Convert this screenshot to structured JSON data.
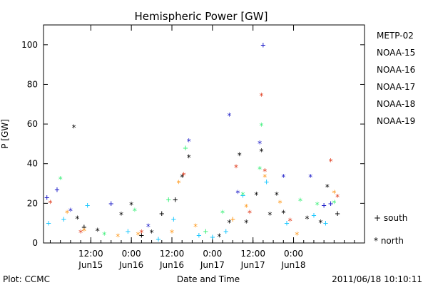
{
  "chart_data": {
    "type": "scatter",
    "title": "Hemispheric Power [GW]",
    "ylabel": "P [GW]",
    "xlabel": "Date and Time",
    "xlim": [
      "2011-06-14 22:00",
      "2011-06-18 21:00"
    ],
    "ylim": [
      0,
      110
    ],
    "yticks": [
      0,
      20,
      40,
      60,
      80,
      100
    ],
    "xticks": [
      {
        "t": "2011-06-15 12:00",
        "label": "12:00",
        "sub": "Jun15"
      },
      {
        "t": "2011-06-16 00:00",
        "label": "0:00",
        "sub": "Jun16"
      },
      {
        "t": "2011-06-16 12:00",
        "label": "12:00",
        "sub": "Jun16"
      },
      {
        "t": "2011-06-17 00:00",
        "label": "0:00",
        "sub": "Jun17"
      },
      {
        "t": "2011-06-17 12:00",
        "label": "12:00",
        "sub": "Jun17"
      },
      {
        "t": "2011-06-18 00:00",
        "label": "0:00",
        "sub": "Jun18"
      }
    ],
    "legend": [
      {
        "name": "METP-02",
        "color": "#000000"
      },
      {
        "name": "NOAA-15",
        "color": "#1c1cc8"
      },
      {
        "name": "NOAA-16",
        "color": "#1ec8ff"
      },
      {
        "name": "NOAA-17",
        "color": "#3cf07a"
      },
      {
        "name": "NOAA-18",
        "color": "#ff9a1e"
      },
      {
        "name": "NOAA-19",
        "color": "#e03c1e"
      }
    ],
    "marker_key": [
      {
        "symbol": "+",
        "label": "south"
      },
      {
        "symbol": "*",
        "label": "north"
      }
    ],
    "series": [
      {
        "name": "METP-02",
        "points": [
          {
            "x": "2011-06-15 07:00",
            "y": 58,
            "m": "*"
          },
          {
            "x": "2011-06-15 08:00",
            "y": 12,
            "m": "*"
          },
          {
            "x": "2011-06-15 10:00",
            "y": 8,
            "m": "+"
          },
          {
            "x": "2011-06-15 14:00",
            "y": 6,
            "m": "*"
          },
          {
            "x": "2011-06-15 21:00",
            "y": 14,
            "m": "*"
          },
          {
            "x": "2011-06-16 00:00",
            "y": 19,
            "m": "*"
          },
          {
            "x": "2011-06-16 03:00",
            "y": 4,
            "m": "+"
          },
          {
            "x": "2011-06-16 06:00",
            "y": 5,
            "m": "*"
          },
          {
            "x": "2011-06-16 09:00",
            "y": 15,
            "m": "+"
          },
          {
            "x": "2011-06-16 13:00",
            "y": 22,
            "m": "+"
          },
          {
            "x": "2011-06-16 15:00",
            "y": 33,
            "m": "*"
          },
          {
            "x": "2011-06-16 17:00",
            "y": 43,
            "m": "*"
          },
          {
            "x": "2011-06-17 02:00",
            "y": 3,
            "m": "*"
          },
          {
            "x": "2011-06-17 05:00",
            "y": 10,
            "m": "*"
          },
          {
            "x": "2011-06-17 08:00",
            "y": 44,
            "m": "*"
          },
          {
            "x": "2011-06-17 10:00",
            "y": 10,
            "m": "*"
          },
          {
            "x": "2011-06-17 13:00",
            "y": 24,
            "m": "*"
          },
          {
            "x": "2011-06-17 14:30",
            "y": 46,
            "m": "*"
          },
          {
            "x": "2011-06-17 17:00",
            "y": 14,
            "m": "*"
          },
          {
            "x": "2011-06-17 19:00",
            "y": 24,
            "m": "*"
          },
          {
            "x": "2011-06-17 21:00",
            "y": 15,
            "m": "*"
          },
          {
            "x": "2011-06-18 04:00",
            "y": 12,
            "m": "*"
          },
          {
            "x": "2011-06-18 08:00",
            "y": 10,
            "m": "*"
          },
          {
            "x": "2011-06-18 10:00",
            "y": 28,
            "m": "*"
          },
          {
            "x": "2011-06-18 13:00",
            "y": 15,
            "m": "+"
          }
        ]
      },
      {
        "name": "NOAA-15",
        "points": [
          {
            "x": "2011-06-14 23:00",
            "y": 23,
            "m": "+"
          },
          {
            "x": "2011-06-15 02:00",
            "y": 27,
            "m": "+"
          },
          {
            "x": "2011-06-15 06:00",
            "y": 16,
            "m": "*"
          },
          {
            "x": "2011-06-15 18:00",
            "y": 20,
            "m": "+"
          },
          {
            "x": "2011-06-16 05:00",
            "y": 8,
            "m": "*"
          },
          {
            "x": "2011-06-16 17:00",
            "y": 51,
            "m": "*"
          },
          {
            "x": "2011-06-17 05:00",
            "y": 64,
            "m": "*"
          },
          {
            "x": "2011-06-17 07:30",
            "y": 25,
            "m": "*"
          },
          {
            "x": "2011-06-17 14:00",
            "y": 50,
            "m": "*"
          },
          {
            "x": "2011-06-17 15:00",
            "y": 100,
            "m": "+"
          },
          {
            "x": "2011-06-17 21:00",
            "y": 33,
            "m": "*"
          },
          {
            "x": "2011-06-18 05:00",
            "y": 33,
            "m": "*"
          },
          {
            "x": "2011-06-18 09:00",
            "y": 19,
            "m": "+"
          },
          {
            "x": "2011-06-18 11:00",
            "y": 20,
            "m": "+"
          }
        ]
      },
      {
        "name": "NOAA-16",
        "points": [
          {
            "x": "2011-06-14 23:30",
            "y": 10,
            "m": "+"
          },
          {
            "x": "2011-06-15 04:00",
            "y": 12,
            "m": "+"
          },
          {
            "x": "2011-06-15 11:00",
            "y": 19,
            "m": "+"
          },
          {
            "x": "2011-06-15 23:00",
            "y": 6,
            "m": "+"
          },
          {
            "x": "2011-06-16 08:00",
            "y": 2,
            "m": "+"
          },
          {
            "x": "2011-06-16 12:30",
            "y": 12,
            "m": "+"
          },
          {
            "x": "2011-06-16 20:00",
            "y": 4,
            "m": "+"
          },
          {
            "x": "2011-06-17 00:00",
            "y": 3,
            "m": "+"
          },
          {
            "x": "2011-06-17 04:00",
            "y": 6,
            "m": "+"
          },
          {
            "x": "2011-06-17 09:00",
            "y": 24,
            "m": "+"
          },
          {
            "x": "2011-06-17 16:00",
            "y": 31,
            "m": "+"
          },
          {
            "x": "2011-06-17 22:00",
            "y": 10,
            "m": "+"
          },
          {
            "x": "2011-06-18 06:00",
            "y": 14,
            "m": "+"
          },
          {
            "x": "2011-06-18 09:30",
            "y": 10,
            "m": "+"
          }
        ]
      },
      {
        "name": "NOAA-17",
        "points": [
          {
            "x": "2011-06-15 03:00",
            "y": 32,
            "m": "*"
          },
          {
            "x": "2011-06-15 16:00",
            "y": 4,
            "m": "*"
          },
          {
            "x": "2011-06-16 01:00",
            "y": 16,
            "m": "*"
          },
          {
            "x": "2011-06-16 11:00",
            "y": 22,
            "m": "+"
          },
          {
            "x": "2011-06-16 16:00",
            "y": 48,
            "m": "+"
          },
          {
            "x": "2011-06-16 22:00",
            "y": 6,
            "m": "+"
          },
          {
            "x": "2011-06-17 03:00",
            "y": 15,
            "m": "*"
          },
          {
            "x": "2011-06-17 09:00",
            "y": 24,
            "m": "*"
          },
          {
            "x": "2011-06-17 14:30",
            "y": 59,
            "m": "*"
          },
          {
            "x": "2011-06-17 14:00",
            "y": 37,
            "m": "*"
          },
          {
            "x": "2011-06-18 02:00",
            "y": 21,
            "m": "*"
          },
          {
            "x": "2011-06-18 07:00",
            "y": 19,
            "m": "*"
          },
          {
            "x": "2011-06-18 12:00",
            "y": 20,
            "m": "*"
          }
        ]
      },
      {
        "name": "NOAA-18",
        "points": [
          {
            "x": "2011-06-15 05:00",
            "y": 15,
            "m": "*"
          },
          {
            "x": "2011-06-15 10:00",
            "y": 6,
            "m": "*"
          },
          {
            "x": "2011-06-15 20:00",
            "y": 3,
            "m": "*"
          },
          {
            "x": "2011-06-16 02:00",
            "y": 4,
            "m": "*"
          },
          {
            "x": "2011-06-16 12:00",
            "y": 5,
            "m": "*"
          },
          {
            "x": "2011-06-16 14:00",
            "y": 30,
            "m": "*"
          },
          {
            "x": "2011-06-16 19:00",
            "y": 8,
            "m": "*"
          },
          {
            "x": "2011-06-17 06:00",
            "y": 12,
            "m": "+"
          },
          {
            "x": "2011-06-17 10:00",
            "y": 18,
            "m": "*"
          },
          {
            "x": "2011-06-17 15:30",
            "y": 33,
            "m": "*"
          },
          {
            "x": "2011-06-17 20:00",
            "y": 20,
            "m": "*"
          },
          {
            "x": "2011-06-18 01:00",
            "y": 4,
            "m": "*"
          },
          {
            "x": "2011-06-18 12:00",
            "y": 25,
            "m": "*"
          }
        ]
      },
      {
        "name": "NOAA-19",
        "points": [
          {
            "x": "2011-06-15 00:00",
            "y": 20,
            "m": "*"
          },
          {
            "x": "2011-06-15 09:00",
            "y": 5,
            "m": "*"
          },
          {
            "x": "2011-06-16 03:00",
            "y": 5,
            "m": "*"
          },
          {
            "x": "2011-06-16 15:30",
            "y": 34,
            "m": "*"
          },
          {
            "x": "2011-06-17 07:00",
            "y": 38,
            "m": "*"
          },
          {
            "x": "2011-06-17 11:00",
            "y": 15,
            "m": "*"
          },
          {
            "x": "2011-06-17 14:30",
            "y": 74,
            "m": "*"
          },
          {
            "x": "2011-06-17 15:30",
            "y": 36,
            "m": "*"
          },
          {
            "x": "2011-06-17 23:00",
            "y": 11,
            "m": "*"
          },
          {
            "x": "2011-06-18 11:00",
            "y": 41,
            "m": "*"
          },
          {
            "x": "2011-06-18 13:00",
            "y": 23,
            "m": "*"
          }
        ]
      }
    ]
  },
  "footer": {
    "left": "Plot: CCMC",
    "center": "Date and Time",
    "right": "2011/06/18 10:10:11"
  }
}
